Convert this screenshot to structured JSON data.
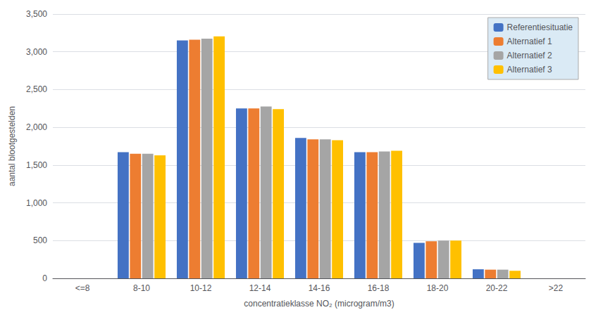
{
  "chart_data": {
    "type": "bar",
    "xlabel": "concentratieklasse NO₂ (microgram/m3)",
    "ylabel": "aantal blootgestelden",
    "categories": [
      "<=8",
      "8-10",
      "10-12",
      "12-14",
      "14-16",
      "16-18",
      "18-20",
      "20-22",
      ">22"
    ],
    "series": [
      {
        "name": "Referentiesituatie",
        "color": "#4472C4",
        "values": [
          0,
          1670,
          3150,
          2250,
          1860,
          1670,
          470,
          120,
          0
        ]
      },
      {
        "name": "Alternatief 1",
        "color": "#ED7D31",
        "values": [
          0,
          1650,
          3160,
          2250,
          1840,
          1670,
          490,
          115,
          0
        ]
      },
      {
        "name": "Alternatief 2",
        "color": "#A5A5A5",
        "values": [
          0,
          1650,
          3175,
          2275,
          1840,
          1680,
          500,
          115,
          0
        ]
      },
      {
        "name": "Alternatief 3",
        "color": "#FFC000",
        "values": [
          0,
          1630,
          3205,
          2240,
          1830,
          1690,
          500,
          100,
          0
        ]
      }
    ],
    "ylim": [
      0,
      3500
    ],
    "yticks": [
      0,
      500,
      1000,
      1500,
      2000,
      2500,
      3000,
      3500
    ],
    "grid": true,
    "legend": "upper right"
  }
}
